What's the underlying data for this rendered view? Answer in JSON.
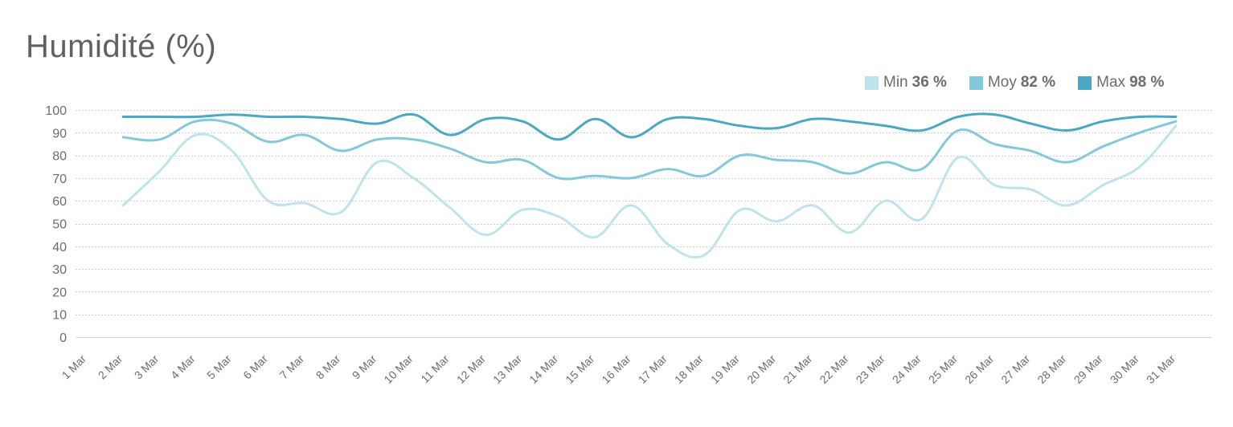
{
  "chart_data": {
    "type": "line",
    "title": "Humidité (%)",
    "xlabel": "",
    "ylabel": "",
    "ylim": [
      0,
      100
    ],
    "yticks": [
      0,
      10,
      20,
      30,
      40,
      50,
      60,
      70,
      80,
      90,
      100
    ],
    "grid": true,
    "legend_position": "top-right",
    "categories": [
      "1 Mar",
      "2 Mar",
      "3 Mar",
      "4 Mar",
      "5 Mar",
      "6 Mar",
      "7 Mar",
      "8 Mar",
      "9 Mar",
      "10 Mar",
      "11 Mar",
      "12 Mar",
      "13 Mar",
      "14 Mar",
      "15 Mar",
      "16 Mar",
      "17 Mar",
      "18 Mar",
      "19 Mar",
      "20 Mar",
      "21 Mar",
      "22 Mar",
      "23 Mar",
      "24 Mar",
      "25 Mar",
      "26 Mar",
      "27 Mar",
      "28 Mar",
      "29 Mar",
      "30 Mar",
      "31 Mar"
    ],
    "series": [
      {
        "name": "Min",
        "legend_value": "36 %",
        "color": "#bfe3ec",
        "values": [
          null,
          58,
          73,
          89,
          82,
          60,
          59,
          55,
          77,
          70,
          57,
          45,
          56,
          53,
          44,
          58,
          41,
          36,
          56,
          51,
          58,
          46,
          60,
          52,
          79,
          67,
          65,
          58,
          67,
          75,
          93
        ]
      },
      {
        "name": "Moy",
        "legend_value": "82 %",
        "color": "#84c8da",
        "values": [
          null,
          88,
          87,
          95,
          94,
          86,
          89,
          82,
          87,
          87,
          83,
          77,
          78,
          70,
          71,
          70,
          74,
          71,
          80,
          78,
          77,
          72,
          77,
          74,
          91,
          85,
          82,
          77,
          84,
          90,
          95
        ]
      },
      {
        "name": "Max",
        "legend_value": "98 %",
        "color": "#4aa8c5",
        "values": [
          null,
          97,
          97,
          97,
          98,
          97,
          97,
          96,
          94,
          98,
          89,
          96,
          95,
          87,
          96,
          88,
          96,
          96,
          93,
          92,
          96,
          95,
          93,
          91,
          97,
          98,
          94,
          91,
          95,
          97,
          97
        ]
      }
    ]
  }
}
